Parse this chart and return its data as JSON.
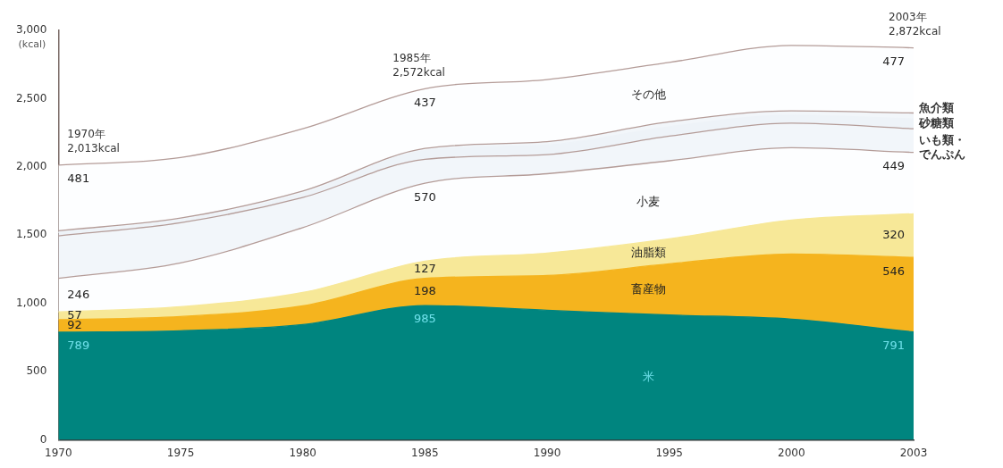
{
  "chart_data": {
    "type": "area",
    "stacked": true,
    "ylabel": "(kcal)",
    "categories": [
      "1970",
      "1975",
      "1980",
      "1985",
      "1990",
      "1995",
      "2000",
      "2003"
    ],
    "ylim": [
      0,
      3000
    ],
    "yticks": [
      {
        "value": 0,
        "label": "0"
      },
      {
        "value": 500,
        "label": "500"
      },
      {
        "value": 1000,
        "label": "1,000"
      },
      {
        "value": 1500,
        "label": "1,500"
      },
      {
        "value": 2000,
        "label": "2,000"
      },
      {
        "value": 2500,
        "label": "2,500"
      },
      {
        "value": 3000,
        "label": "3,000"
      }
    ],
    "grid": false,
    "legend": false,
    "series": [
      {
        "name": "米",
        "color": "#00857f",
        "values": [
          789,
          800,
          845,
          985,
          950,
          915,
          885,
          791
        ],
        "value_labels": [
          "789",
          null,
          null,
          "985",
          null,
          null,
          null,
          "791"
        ]
      },
      {
        "name": "畜産物",
        "color": "#f5b41e",
        "values": [
          92,
          104,
          137,
          198,
          255,
          375,
          477,
          546
        ],
        "value_labels": [
          "92",
          null,
          null,
          "198",
          null,
          null,
          null,
          "546"
        ]
      },
      {
        "name": "油脂類",
        "color": "#f7e898",
        "values": [
          57,
          72,
          98,
          127,
          164,
          183,
          249,
          320
        ],
        "value_labels": [
          "57",
          null,
          null,
          "127",
          null,
          null,
          null,
          "320"
        ]
      },
      {
        "name": "小麦",
        "color": "#fdfeff",
        "values": [
          246,
          321,
          475,
          570,
          581,
          572,
          529,
          449
        ],
        "value_labels": [
          "246",
          null,
          null,
          "570",
          null,
          null,
          null,
          "449"
        ]
      },
      {
        "name": "いも類・でんぷん",
        "color": "#f2f6fa",
        "values": [
          311,
          294,
          221,
          176,
          140,
          180,
          180,
          174
        ]
      },
      {
        "name": "砂糖類",
        "color": "#eef3f8",
        "values": [
          25,
          21,
          29,
          64,
          70,
          70,
          60,
          72
        ]
      },
      {
        "name": "魚介類",
        "color": "#f2f6fa",
        "values": [
          12,
          13,
          18,
          15,
          25,
          35,
          30,
          43
        ]
      },
      {
        "name": "その他",
        "color": "#fdfeff",
        "values": [
          481,
          443,
          456,
          437,
          455,
          435,
          480,
          477
        ],
        "value_labels": [
          "481",
          null,
          null,
          "437",
          null,
          null,
          null,
          "477"
        ]
      }
    ],
    "annotations": [
      {
        "text": "1970年\n2,013kcal",
        "x": "1970",
        "y": 2013
      },
      {
        "text": "1985年\n2,572kcal",
        "x": "1985",
        "y": 2572
      },
      {
        "text": "2003年\n2,872kcal",
        "x": "2003",
        "y": 2872
      }
    ]
  }
}
